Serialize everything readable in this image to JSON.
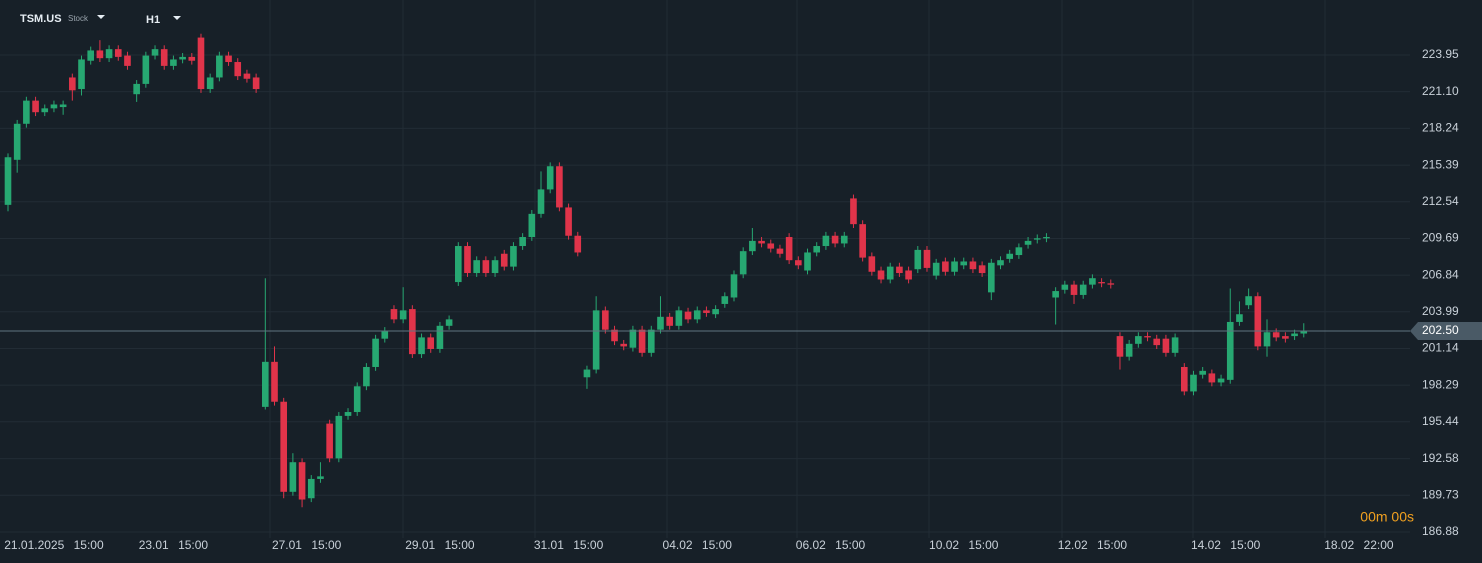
{
  "chart_data": {
    "type": "candlestick",
    "symbol": "TSM.US",
    "asset_type": "Stock",
    "timeframe": "H1",
    "up_color": "#27a872",
    "down_color": "#e0344a",
    "grid": true,
    "ylim": [
      186.41,
      228.22
    ],
    "yticks": [
      223.95,
      {
        "value": 221.1,
        "label": "221.10"
      },
      218.24,
      215.39,
      212.54,
      209.69,
      206.84,
      203.99,
      201.14,
      198.29,
      195.44,
      192.58,
      189.73,
      186.88
    ],
    "xlim": [
      -0.87,
      152.56
    ],
    "xticks": [
      {
        "value": 5,
        "label": "21.01.2025 15:00"
      },
      {
        "value": 18,
        "label": "23.01 15:00"
      },
      {
        "value": 32.5,
        "label": "27.01 15:00"
      },
      {
        "value": 47,
        "label": "29.01 15:00"
      },
      {
        "value": 61,
        "label": "31.01 15:00"
      },
      {
        "value": 75,
        "label": "04.02 15:00"
      },
      {
        "value": 89.5,
        "label": "06.02 15:00"
      },
      {
        "value": 104,
        "label": "10.02 15:00"
      },
      {
        "value": 118,
        "label": "12.02 15:00"
      },
      {
        "value": 132.5,
        "label": "14.02 15:00"
      },
      {
        "value": 147,
        "label": "18.02 22:00"
      }
    ],
    "last_price": {
      "value": 202.5,
      "label": "202.50"
    },
    "countdown": "00m 00s",
    "candles": [
      [
        212.3,
        216.3,
        211.8,
        216.0
      ],
      [
        215.8,
        218.9,
        214.8,
        218.6
      ],
      [
        218.6,
        220.7,
        218.3,
        220.4
      ],
      [
        220.4,
        220.7,
        219.2,
        219.5
      ],
      [
        219.5,
        220.1,
        219.2,
        219.8
      ],
      [
        219.8,
        220.4,
        219.5,
        220.1
      ],
      [
        219.9,
        220.4,
        219.3,
        220.1
      ],
      [
        222.2,
        222.5,
        220.4,
        221.2
      ],
      [
        221.3,
        223.9,
        220.8,
        223.6
      ],
      [
        223.5,
        224.6,
        223.2,
        224.3
      ],
      [
        224.3,
        225.1,
        223.4,
        223.7
      ],
      [
        223.7,
        224.7,
        223.4,
        224.4
      ],
      [
        224.4,
        224.7,
        223.5,
        223.8
      ],
      [
        223.9,
        224.2,
        222.8,
        223.1
      ],
      [
        220.9,
        222.0,
        220.3,
        221.7
      ],
      [
        221.7,
        224.2,
        221.4,
        223.9
      ],
      [
        223.9,
        224.7,
        223.6,
        224.4
      ],
      [
        224.4,
        224.7,
        222.8,
        223.1
      ],
      [
        223.1,
        223.9,
        222.8,
        223.6
      ],
      [
        223.6,
        224.1,
        223.3,
        223.8
      ],
      [
        223.8,
        224.1,
        223.2,
        223.5
      ],
      [
        225.3,
        225.6,
        221.0,
        221.3
      ],
      [
        221.3,
        222.5,
        221.0,
        222.2
      ],
      [
        222.2,
        224.2,
        221.9,
        223.9
      ],
      [
        223.9,
        224.2,
        223.1,
        223.4
      ],
      [
        223.4,
        223.7,
        222.0,
        222.3
      ],
      [
        222.5,
        222.8,
        221.8,
        222.1
      ],
      [
        222.2,
        222.5,
        221.0,
        221.3
      ],
      [
        196.6,
        206.6,
        196.4,
        200.1
      ],
      [
        200.1,
        201.3,
        196.7,
        197.0
      ],
      [
        197.0,
        197.3,
        189.5,
        190.0
      ],
      [
        190.0,
        193.0,
        189.7,
        192.3
      ],
      [
        192.3,
        192.6,
        188.8,
        189.4
      ],
      [
        189.5,
        191.3,
        189.2,
        191.0
      ],
      [
        191.0,
        192.3,
        190.7,
        191.2
      ],
      [
        195.3,
        195.6,
        192.3,
        192.6
      ],
      [
        192.6,
        196.2,
        192.3,
        195.9
      ],
      [
        195.9,
        196.5,
        195.6,
        196.2
      ],
      [
        196.2,
        198.5,
        195.9,
        198.2
      ],
      [
        198.2,
        200.0,
        197.9,
        199.7
      ],
      [
        199.7,
        202.2,
        199.4,
        201.9
      ],
      [
        201.9,
        202.8,
        201.6,
        202.5
      ],
      [
        204.2,
        204.5,
        203.1,
        203.4
      ],
      [
        203.4,
        205.9,
        203.1,
        204.1
      ],
      [
        204.2,
        204.5,
        200.4,
        200.7
      ],
      [
        200.7,
        202.3,
        200.4,
        202.0
      ],
      [
        202.0,
        202.3,
        200.8,
        201.1
      ],
      [
        201.1,
        203.2,
        200.8,
        202.9
      ],
      [
        202.9,
        203.7,
        202.6,
        203.4
      ],
      [
        206.3,
        209.4,
        206.0,
        209.1
      ],
      [
        209.1,
        209.4,
        206.7,
        207.0
      ],
      [
        207.0,
        208.3,
        206.7,
        208.0
      ],
      [
        208.0,
        208.3,
        206.7,
        207.0
      ],
      [
        207.0,
        208.3,
        206.7,
        208.0
      ],
      [
        208.5,
        208.8,
        207.2,
        207.5
      ],
      [
        207.5,
        209.4,
        207.2,
        209.1
      ],
      [
        209.1,
        210.1,
        208.8,
        209.8
      ],
      [
        209.8,
        211.9,
        209.5,
        211.6
      ],
      [
        211.6,
        214.9,
        211.3,
        213.5
      ],
      [
        213.5,
        215.6,
        213.2,
        215.3
      ],
      [
        215.3,
        215.6,
        211.8,
        212.1
      ],
      [
        212.1,
        212.4,
        209.6,
        209.9
      ],
      [
        209.9,
        210.2,
        208.3,
        208.6
      ],
      [
        198.9,
        199.8,
        198.0,
        199.5
      ],
      [
        199.5,
        205.2,
        199.2,
        204.1
      ],
      [
        204.1,
        204.4,
        202.3,
        202.6
      ],
      [
        202.6,
        202.9,
        201.4,
        201.7
      ],
      [
        201.5,
        201.8,
        201.0,
        201.3
      ],
      [
        201.2,
        202.9,
        200.9,
        202.6
      ],
      [
        202.6,
        202.9,
        200.5,
        200.8
      ],
      [
        200.8,
        202.9,
        200.5,
        202.6
      ],
      [
        202.6,
        205.2,
        202.3,
        203.6
      ],
      [
        203.6,
        203.9,
        202.6,
        202.9
      ],
      [
        202.9,
        204.4,
        202.6,
        204.1
      ],
      [
        204.0,
        204.3,
        203.1,
        203.4
      ],
      [
        203.4,
        204.4,
        203.1,
        204.1
      ],
      [
        204.1,
        204.4,
        203.6,
        203.9
      ],
      [
        203.8,
        204.5,
        203.5,
        204.2
      ],
      [
        204.6,
        205.5,
        204.3,
        205.2
      ],
      [
        205.1,
        207.2,
        204.8,
        206.9
      ],
      [
        206.9,
        209.0,
        206.6,
        208.7
      ],
      [
        208.7,
        210.5,
        208.4,
        209.5
      ],
      [
        209.5,
        209.8,
        209.0,
        209.3
      ],
      [
        209.3,
        209.6,
        208.6,
        208.9
      ],
      [
        208.9,
        209.2,
        208.2,
        208.5
      ],
      [
        209.8,
        210.1,
        207.7,
        208.0
      ],
      [
        208.0,
        208.3,
        207.3,
        207.6
      ],
      [
        207.2,
        208.9,
        206.9,
        208.6
      ],
      [
        208.6,
        209.4,
        208.3,
        209.1
      ],
      [
        209.1,
        210.2,
        208.8,
        209.9
      ],
      [
        209.9,
        210.2,
        209.0,
        209.3
      ],
      [
        209.3,
        210.2,
        209.0,
        209.9
      ],
      [
        212.8,
        213.1,
        210.5,
        210.8
      ],
      [
        210.8,
        211.1,
        207.9,
        208.2
      ],
      [
        208.3,
        208.6,
        206.8,
        207.1
      ],
      [
        207.2,
        207.5,
        206.2,
        206.5
      ],
      [
        206.5,
        207.8,
        206.2,
        207.5
      ],
      [
        207.5,
        207.8,
        206.7,
        207.0
      ],
      [
        207.2,
        207.5,
        206.2,
        206.5
      ],
      [
        207.3,
        209.1,
        207.0,
        208.8
      ],
      [
        208.8,
        209.1,
        207.1,
        207.4
      ],
      [
        206.8,
        208.1,
        206.5,
        207.8
      ],
      [
        207.9,
        208.2,
        206.8,
        207.1
      ],
      [
        207.1,
        208.2,
        206.8,
        207.9
      ],
      [
        207.6,
        208.2,
        207.3,
        207.9
      ],
      [
        207.9,
        208.2,
        207.0,
        207.3
      ],
      [
        207.6,
        207.9,
        206.7,
        207.0
      ],
      [
        205.5,
        208.1,
        204.9,
        207.8
      ],
      [
        207.6,
        208.3,
        207.3,
        208.0
      ],
      [
        208.1,
        208.8,
        207.8,
        208.5
      ],
      [
        208.4,
        209.3,
        208.1,
        209.0
      ],
      [
        209.2,
        209.8,
        208.9,
        209.5
      ],
      [
        209.6,
        210.0,
        209.3,
        209.7
      ],
      [
        209.7,
        210.1,
        209.4,
        209.8
      ],
      [
        205.1,
        205.9,
        203.0,
        205.6
      ],
      [
        205.7,
        206.4,
        205.4,
        206.1
      ],
      [
        206.1,
        206.4,
        204.6,
        205.3
      ],
      [
        205.3,
        206.4,
        205.0,
        206.1
      ],
      [
        206.1,
        206.9,
        205.8,
        206.6
      ],
      [
        206.3,
        206.6,
        205.9,
        206.2
      ],
      [
        206.2,
        206.5,
        205.8,
        206.1
      ],
      [
        202.1,
        202.4,
        199.5,
        200.5
      ],
      [
        200.5,
        201.8,
        200.2,
        201.5
      ],
      [
        201.5,
        202.4,
        201.2,
        202.1
      ],
      [
        202.1,
        202.4,
        201.7,
        202.0
      ],
      [
        201.9,
        202.2,
        201.1,
        201.4
      ],
      [
        201.9,
        202.2,
        200.5,
        200.8
      ],
      [
        200.8,
        202.3,
        200.5,
        202.0
      ],
      [
        199.7,
        200.0,
        197.5,
        197.8
      ],
      [
        197.8,
        199.4,
        197.5,
        199.1
      ],
      [
        199.1,
        199.7,
        198.8,
        199.4
      ],
      [
        199.2,
        199.5,
        198.2,
        198.5
      ],
      [
        198.5,
        199.1,
        198.2,
        198.8
      ],
      [
        198.7,
        205.8,
        198.4,
        203.2
      ],
      [
        203.2,
        204.8,
        202.9,
        203.8
      ],
      [
        204.5,
        205.8,
        204.2,
        205.2
      ],
      [
        205.2,
        205.5,
        201.0,
        201.3
      ],
      [
        201.3,
        203.4,
        200.5,
        202.4
      ],
      [
        202.4,
        202.7,
        201.7,
        202.0
      ],
      [
        202.1,
        202.4,
        201.6,
        201.9
      ],
      [
        202.1,
        202.6,
        201.8,
        202.3
      ],
      [
        202.3,
        203.1,
        202.0,
        202.5
      ]
    ]
  }
}
